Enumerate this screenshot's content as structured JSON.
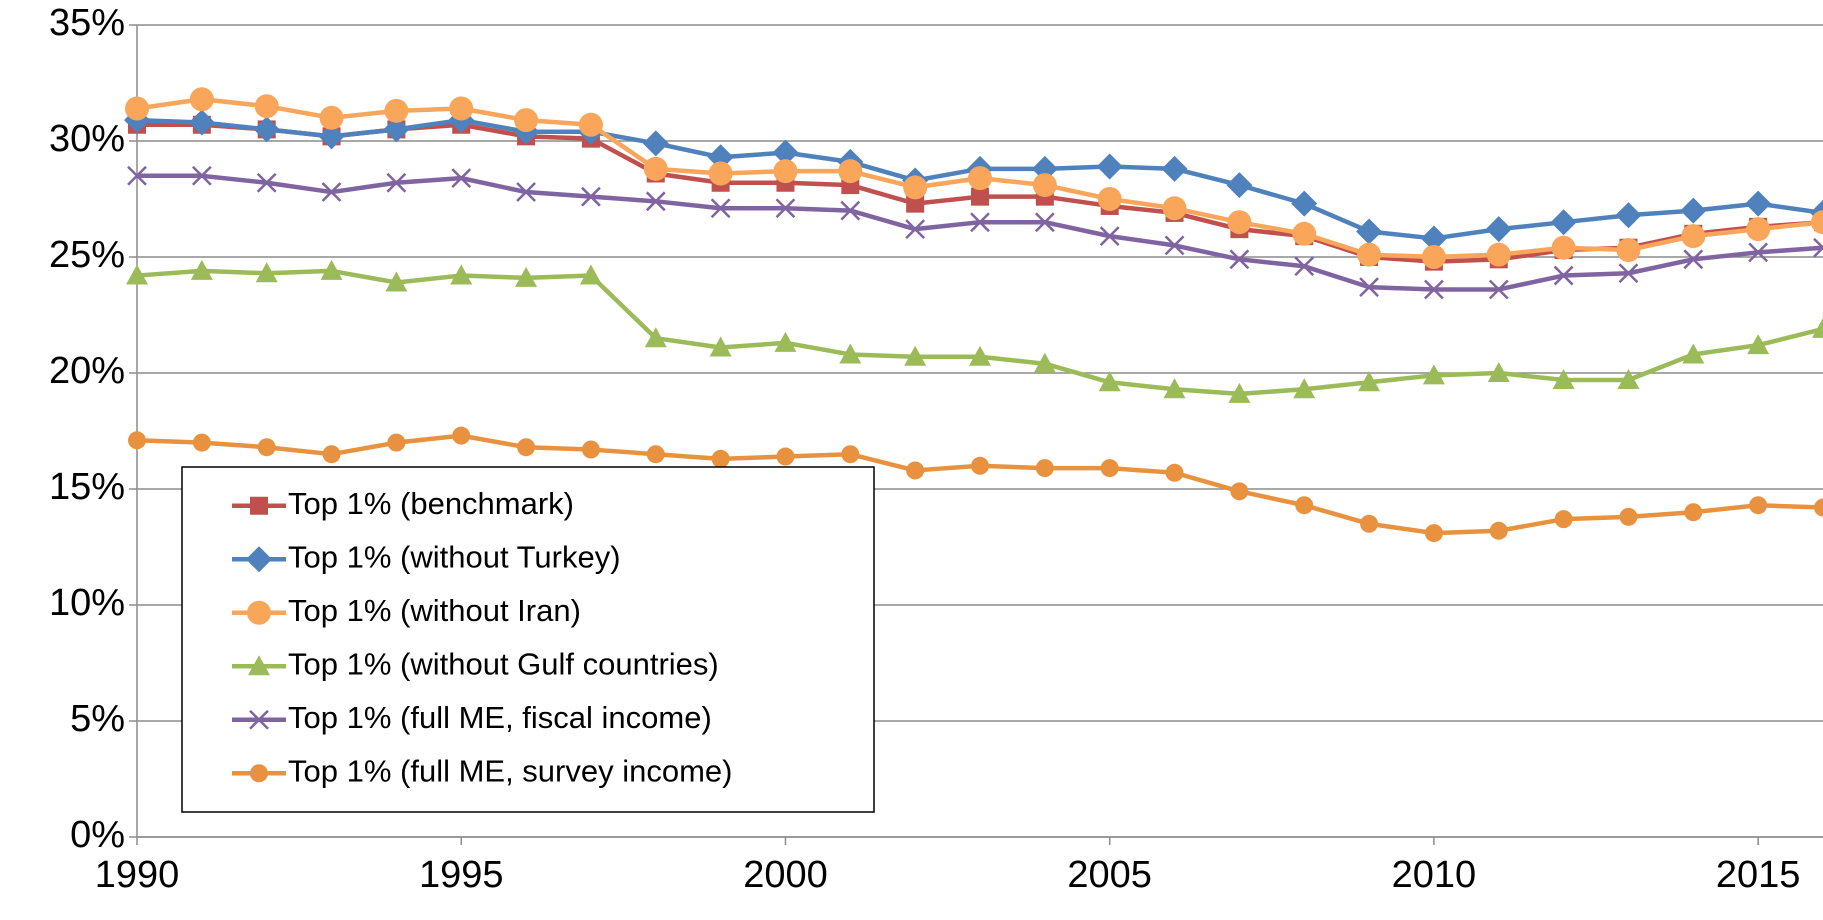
{
  "chart_data": {
    "type": "line",
    "x": [
      1990,
      1991,
      1992,
      1993,
      1994,
      1995,
      1996,
      1997,
      1998,
      1999,
      2000,
      2001,
      2002,
      2003,
      2004,
      2005,
      2006,
      2007,
      2008,
      2009,
      2010,
      2011,
      2012,
      2013,
      2014,
      2015,
      2016
    ],
    "xlim": [
      1990,
      2016
    ],
    "xticks": [
      1990,
      1995,
      2000,
      2005,
      2010,
      2015
    ],
    "ylim": [
      0,
      35
    ],
    "yticks": [
      {
        "value": 0,
        "label": "0%"
      },
      {
        "value": 5,
        "label": "5%"
      },
      {
        "value": 10,
        "label": "10%"
      },
      {
        "value": 15,
        "label": "15%"
      },
      {
        "value": 20,
        "label": "20%"
      },
      {
        "value": 25,
        "label": "25%"
      },
      {
        "value": 30,
        "label": "30%"
      },
      {
        "value": 35,
        "label": "35%"
      }
    ],
    "grid": true,
    "legend": "lower-left",
    "series": [
      {
        "name": "Top 1% (benchmark)",
        "color": "#c0504d",
        "marker": "square",
        "values": [
          30.7,
          30.7,
          30.5,
          30.2,
          30.5,
          30.7,
          30.2,
          30.1,
          28.6,
          28.2,
          28.2,
          28.1,
          27.3,
          27.6,
          27.6,
          27.2,
          26.9,
          26.2,
          25.9,
          25.0,
          24.8,
          24.9,
          25.3,
          25.4,
          26.0,
          26.3,
          26.5
        ]
      },
      {
        "name": "Top 1% (without Turkey)",
        "color": "#4f81bd",
        "marker": "diamond",
        "values": [
          30.9,
          30.8,
          30.5,
          30.2,
          30.5,
          30.9,
          30.4,
          30.4,
          29.9,
          29.3,
          29.5,
          29.1,
          28.3,
          28.8,
          28.8,
          28.9,
          28.8,
          28.1,
          27.3,
          26.1,
          25.8,
          26.2,
          26.5,
          26.8,
          27.0,
          27.3,
          26.9
        ]
      },
      {
        "name": "Top 1% (without Iran)",
        "color": "#f9a55a",
        "marker": "circle",
        "values": [
          31.4,
          31.8,
          31.5,
          31.0,
          31.3,
          31.4,
          30.9,
          30.7,
          28.8,
          28.6,
          28.7,
          28.7,
          28.0,
          28.4,
          28.1,
          27.5,
          27.1,
          26.5,
          26.0,
          25.1,
          25.0,
          25.1,
          25.4,
          25.3,
          25.9,
          26.2,
          26.5
        ]
      },
      {
        "name": "Top 1% (without Gulf countries)",
        "color": "#9bbb59",
        "marker": "triangle",
        "values": [
          24.2,
          24.4,
          24.3,
          24.4,
          23.9,
          24.2,
          24.1,
          24.2,
          21.5,
          21.1,
          21.3,
          20.8,
          20.7,
          20.7,
          20.4,
          19.6,
          19.3,
          19.1,
          19.3,
          19.6,
          19.9,
          20.0,
          19.7,
          19.7,
          20.8,
          21.2,
          21.9
        ]
      },
      {
        "name": "Top 1% (full ME, fiscal income)",
        "color": "#8064a2",
        "marker": "x",
        "values": [
          28.5,
          28.5,
          28.2,
          27.8,
          28.2,
          28.4,
          27.8,
          27.6,
          27.4,
          27.1,
          27.1,
          27.0,
          26.2,
          26.5,
          26.5,
          25.9,
          25.5,
          24.9,
          24.6,
          23.7,
          23.6,
          23.6,
          24.2,
          24.3,
          24.9,
          25.2,
          25.4
        ]
      },
      {
        "name": "Top 1% (full ME, survey income)",
        "color": "#e8923f",
        "marker": "circle-small",
        "values": [
          17.1,
          17.0,
          16.8,
          16.5,
          17.0,
          17.3,
          16.8,
          16.7,
          16.5,
          16.3,
          16.4,
          16.5,
          15.8,
          16.0,
          15.9,
          15.9,
          15.7,
          14.9,
          14.3,
          13.5,
          13.1,
          13.2,
          13.7,
          13.8,
          14.0,
          14.3,
          14.2
        ]
      }
    ]
  }
}
